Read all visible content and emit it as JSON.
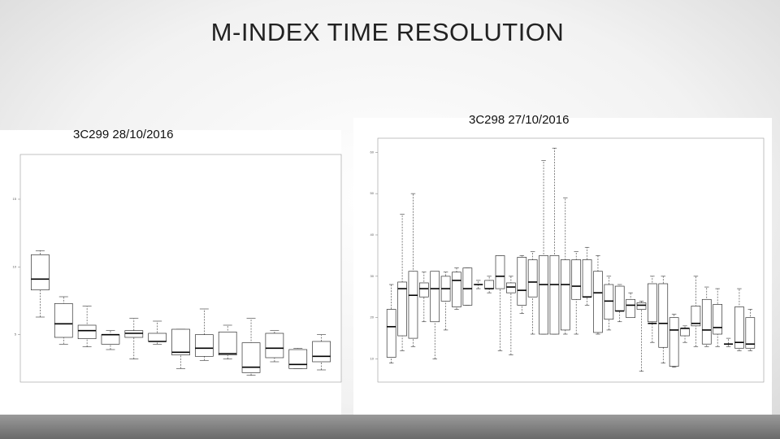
{
  "title": "M-INDEX TIME RESOLUTION",
  "chart_data": [
    {
      "type": "box",
      "title": "3C299 28/10/2016",
      "ylim": [
        1.5,
        18.3
      ],
      "yticks": [
        5,
        10,
        15
      ],
      "boxes": [
        [
          6.3,
          8.3,
          9.1,
          10.9,
          11.2
        ],
        [
          4.3,
          4.8,
          5.8,
          7.3,
          7.8
        ],
        [
          4.1,
          4.7,
          5.3,
          5.7,
          7.1
        ],
        [
          3.9,
          4.3,
          5.0,
          5.0,
          5.3
        ],
        [
          3.2,
          4.8,
          5.1,
          5.3,
          6.2
        ],
        [
          4.3,
          4.5,
          4.5,
          5.1,
          6.0
        ],
        [
          2.5,
          3.5,
          3.7,
          5.4,
          5.4
        ],
        [
          3.1,
          3.4,
          4.0,
          5.0,
          6.9
        ],
        [
          3.2,
          3.5,
          3.6,
          5.2,
          5.7
        ],
        [
          2.0,
          2.2,
          2.6,
          4.4,
          6.2
        ],
        [
          3.0,
          3.3,
          4.0,
          5.1,
          5.3
        ],
        [
          2.5,
          2.5,
          2.8,
          3.9,
          4.0
        ],
        [
          2.4,
          3.0,
          3.4,
          4.5,
          5.0
        ]
      ]
    },
    {
      "type": "box",
      "title": "3C298 27/10/2016",
      "ylim": [
        4.4,
        63.4
      ],
      "yticks": [
        10,
        20,
        30,
        40,
        50,
        60
      ],
      "boxes": [
        [
          9,
          10.4,
          17.8,
          22,
          28
        ],
        [
          12,
          15.6,
          27,
          28.6,
          45
        ],
        [
          13,
          15,
          25.4,
          31.2,
          50
        ],
        [
          19,
          25,
          27,
          28.4,
          31
        ],
        [
          10,
          19,
          27,
          31.2,
          31
        ],
        [
          17,
          24,
          27,
          30,
          31
        ],
        [
          22,
          22.6,
          29,
          31,
          32
        ],
        [
          23,
          23,
          27,
          32,
          32
        ],
        [
          27,
          28,
          28,
          28,
          29
        ],
        [
          26,
          27,
          27,
          29,
          30
        ],
        [
          12,
          27,
          30,
          35,
          35
        ],
        [
          11,
          26,
          27.4,
          28.4,
          30
        ],
        [
          21,
          23,
          26.6,
          34.6,
          35
        ],
        [
          16,
          25,
          28.6,
          34,
          36
        ],
        [
          16,
          16,
          28,
          35,
          58
        ],
        [
          16,
          16,
          28,
          35,
          61
        ],
        [
          16,
          17,
          28,
          34,
          49
        ],
        [
          16,
          24.4,
          27.6,
          34,
          36
        ],
        [
          23,
          25,
          25,
          34,
          37
        ],
        [
          16,
          16.4,
          26,
          31.2,
          35
        ],
        [
          17,
          19.6,
          24,
          28,
          30
        ],
        [
          19,
          21.6,
          21.6,
          27.6,
          28
        ],
        [
          20,
          20,
          23,
          24.4,
          26
        ],
        [
          7,
          22,
          23,
          23.6,
          24
        ],
        [
          14,
          19,
          18.6,
          28.2,
          30
        ],
        [
          9,
          12.8,
          18.6,
          28.2,
          30
        ],
        [
          8,
          8.2,
          17,
          20,
          20.8
        ],
        [
          14,
          15.6,
          17.4,
          17.4,
          18
        ],
        [
          13,
          18,
          18.6,
          22.8,
          30
        ],
        [
          13,
          13.6,
          17,
          24.4,
          27.4
        ],
        [
          13,
          16,
          17.6,
          23.2,
          27
        ],
        [
          13,
          13.6,
          13.6,
          13.6,
          15
        ],
        [
          12,
          12.6,
          14,
          22.6,
          27
        ],
        [
          12,
          12.6,
          13.6,
          20,
          22
        ]
      ]
    }
  ]
}
